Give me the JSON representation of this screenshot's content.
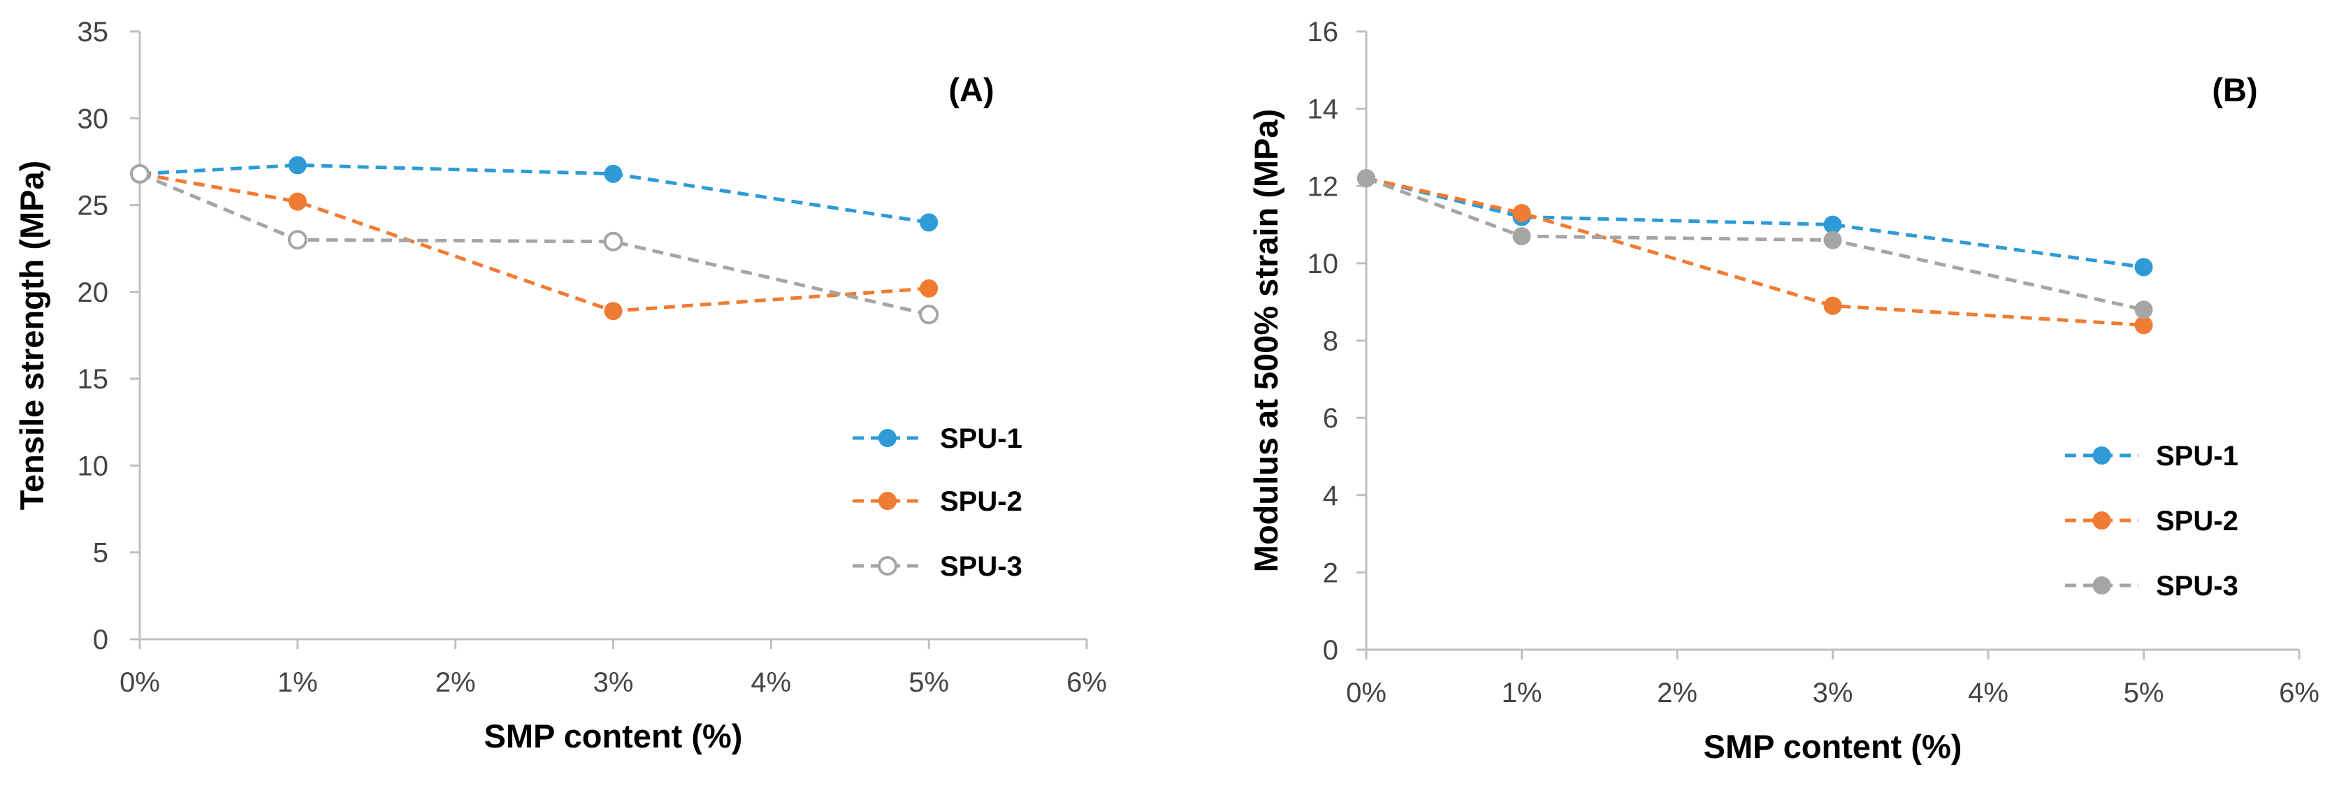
{
  "chart_data": [
    {
      "type": "line",
      "panel_label": "(A)",
      "xlabel": "SMP content (%)",
      "ylabel": "Tensile strength (MPa)",
      "x": [
        0,
        1,
        3,
        5
      ],
      "xlim": [
        0,
        6
      ],
      "x_ticks": [
        0,
        1,
        2,
        3,
        4,
        5,
        6
      ],
      "x_tick_labels": [
        "0%",
        "1%",
        "2%",
        "3%",
        "4%",
        "5%",
        "6%"
      ],
      "ylim": [
        0,
        35
      ],
      "y_ticks": [
        0,
        5,
        10,
        15,
        20,
        25,
        30,
        35
      ],
      "y_tick_labels": [
        "0",
        "5",
        "10",
        "15",
        "20",
        "25",
        "30",
        "35"
      ],
      "grid": false,
      "legend_position": "right",
      "series": [
        {
          "name": "SPU-1",
          "color": "#2e9bd6",
          "marker": "filled",
          "values": [
            26.8,
            27.3,
            26.8,
            24.0
          ]
        },
        {
          "name": "SPU-2",
          "color": "#f07b32",
          "marker": "filled",
          "values": [
            26.8,
            25.2,
            18.9,
            20.2
          ]
        },
        {
          "name": "SPU-3",
          "color": "#a5a5a5",
          "marker": "open",
          "values": [
            26.8,
            23.0,
            22.9,
            18.7
          ]
        }
      ]
    },
    {
      "type": "line",
      "panel_label": "(B)",
      "xlabel": "SMP content (%)",
      "ylabel": "Modulus at 500% strain (MPa)",
      "x": [
        0,
        1,
        3,
        5
      ],
      "xlim": [
        0,
        6
      ],
      "x_ticks": [
        0,
        1,
        2,
        3,
        4,
        5,
        6
      ],
      "x_tick_labels": [
        "0%",
        "1%",
        "2%",
        "3%",
        "4%",
        "5%",
        "6%"
      ],
      "ylim": [
        0,
        16
      ],
      "y_ticks": [
        0,
        2,
        4,
        6,
        8,
        10,
        12,
        14,
        16
      ],
      "y_tick_labels": [
        "0",
        "2",
        "4",
        "6",
        "8",
        "10",
        "12",
        "14",
        "16"
      ],
      "grid": false,
      "legend_position": "right",
      "series": [
        {
          "name": "SPU-1",
          "color": "#2e9bd6",
          "marker": "filled",
          "values": [
            12.2,
            11.2,
            11.0,
            9.9
          ]
        },
        {
          "name": "SPU-2",
          "color": "#f07b32",
          "marker": "filled",
          "values": [
            12.2,
            11.3,
            8.9,
            8.4
          ]
        },
        {
          "name": "SPU-3",
          "color": "#a5a5a5",
          "marker": "filled",
          "values": [
            12.2,
            10.7,
            10.6,
            8.8
          ]
        }
      ]
    }
  ]
}
